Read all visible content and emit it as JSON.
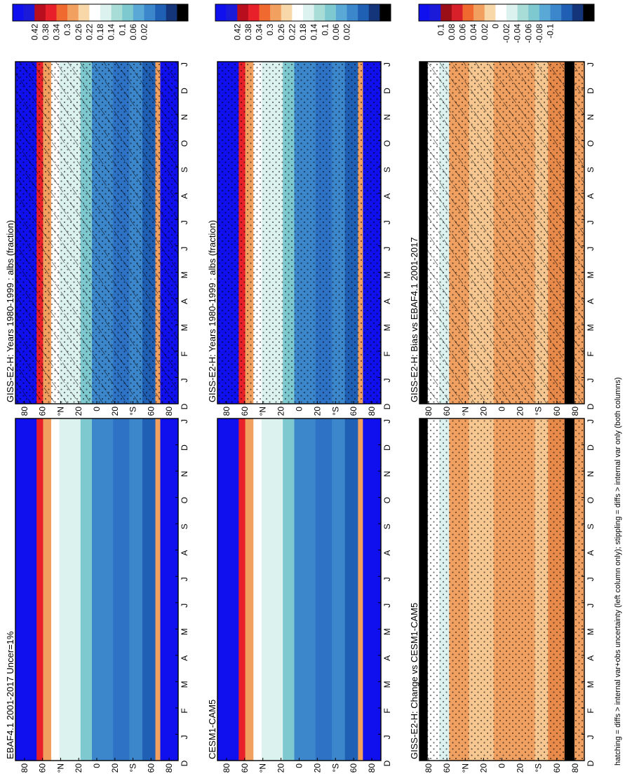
{
  "footer_note": "hatching = diffs > internal var+obs uncertainty (left column only); stippling = diffs > internal var only (both columns)",
  "months": [
    "D",
    "J",
    "F",
    "M",
    "A",
    "M",
    "J",
    "J",
    "A",
    "S",
    "O",
    "N",
    "D",
    "J"
  ],
  "lat_ticks": [
    "80",
    "60",
    "°N",
    "20",
    "0",
    "20",
    "°S",
    "60",
    "80"
  ],
  "colorbars": {
    "abs": {
      "labels": [
        "0.42",
        "0.38",
        "0.34",
        "0.3",
        "0.26",
        "0.22",
        "0.18",
        "0.14",
        "0.1",
        "0.06",
        "0.02"
      ],
      "colors": [
        "#1010ee",
        "#1a1ad8",
        "#b80e1e",
        "#e8202a",
        "#f06a30",
        "#f2a060",
        "#f8d8a8",
        "#ffffff",
        "#dcf2ee",
        "#a8dcd6",
        "#7ec8d0",
        "#5aa8d6",
        "#3c86cc",
        "#2060b4",
        "#15357a",
        "#000000"
      ]
    },
    "diff": {
      "labels": [
        "0.1",
        "0.08",
        "0.06",
        "0.04",
        "0.02",
        "0",
        "-0.02",
        "-0.04",
        "-0.06",
        "-0.08",
        "-0.1"
      ],
      "colors": [
        "#1010ee",
        "#1a1ad8",
        "#9a0e18",
        "#d8202a",
        "#f06a30",
        "#f2a060",
        "#f8d8a8",
        "#ffffff",
        "#dcf2ee",
        "#a8dcd6",
        "#7ec8d0",
        "#5aa8d6",
        "#3c86cc",
        "#2060b4",
        "#15357a",
        "#000000"
      ]
    }
  },
  "chart_data": [
    {
      "type": "heatmap",
      "title": "GISS-E2-H: Years 1980-1999 : albs (fraction)",
      "x": [
        "D",
        "J",
        "F",
        "M",
        "A",
        "M",
        "J",
        "J",
        "A",
        "S",
        "O",
        "N",
        "D",
        "J"
      ],
      "y": [
        "80",
        "60",
        "°N",
        "20",
        "0",
        "20",
        "°S",
        "60",
        "80"
      ],
      "scale": "abs",
      "hatching": true,
      "stippling": true
    },
    {
      "type": "heatmap",
      "title": "GISS-E2-H: Years 1980-1999 : albs (fraction)",
      "x": [
        "D",
        "J",
        "F",
        "M",
        "A",
        "M",
        "J",
        "J",
        "A",
        "S",
        "O",
        "N",
        "D",
        "J"
      ],
      "y": [
        "80",
        "60",
        "°N",
        "20",
        "0",
        "20",
        "°S",
        "60",
        "80"
      ],
      "scale": "abs",
      "hatching": false,
      "stippling": true
    },
    {
      "type": "heatmap",
      "title": "EBAF4.1 2001-2017 Uncer=1%",
      "x": [
        "D",
        "J",
        "F",
        "M",
        "A",
        "M",
        "J",
        "J",
        "A",
        "S",
        "O",
        "N",
        "D",
        "J"
      ],
      "y": [
        "80",
        "60",
        "°N",
        "20",
        "0",
        "20",
        "°S",
        "60",
        "80"
      ],
      "scale": "abs",
      "hatching": false,
      "stippling": false
    },
    {
      "type": "heatmap",
      "title": "CESM1-CAM5",
      "x": [
        "D",
        "J",
        "F",
        "M",
        "A",
        "M",
        "J",
        "J",
        "A",
        "S",
        "O",
        "N",
        "D",
        "J"
      ],
      "y": [
        "80",
        "60",
        "°N",
        "20",
        "0",
        "20",
        "°S",
        "60",
        "80"
      ],
      "scale": "abs",
      "hatching": false,
      "stippling": false
    },
    {
      "type": "heatmap",
      "title": "GISS-E2-H: Bias vs EBAF4.1 2001-2017",
      "x": [
        "D",
        "J",
        "F",
        "M",
        "A",
        "M",
        "J",
        "J",
        "A",
        "S",
        "O",
        "N",
        "D",
        "J"
      ],
      "y": [
        "80",
        "60",
        "°N",
        "20",
        "0",
        "20",
        "°S",
        "60",
        "80"
      ],
      "scale": "diff",
      "hatching": true,
      "stippling": true
    },
    {
      "type": "heatmap",
      "title": "GISS-E2-H: Change vs CESM1-CAM5",
      "x": [
        "D",
        "J",
        "F",
        "M",
        "A",
        "M",
        "J",
        "J",
        "A",
        "S",
        "O",
        "N",
        "D",
        "J"
      ],
      "y": [
        "80",
        "60",
        "°N",
        "20",
        "0",
        "20",
        "°S",
        "60",
        "80"
      ],
      "scale": "diff",
      "hatching": false,
      "stippling": true
    }
  ]
}
